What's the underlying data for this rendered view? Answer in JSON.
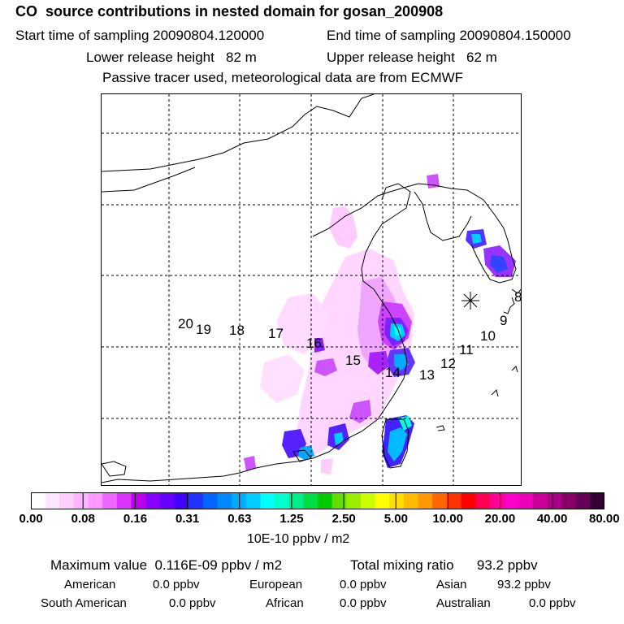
{
  "header": {
    "title": "CO  source contributions in nested domain for gosan_200908",
    "start_time": "Start time of sampling 20090804.120000",
    "end_time": "End time of sampling 20090804.150000",
    "lower_height": "Lower release height   82 m",
    "upper_height": "Upper release height   62 m",
    "tracer_note": "Passive tracer used, meteorological data are from ECMWF"
  },
  "map": {
    "trajectory_labels": [
      "8",
      "9",
      "10",
      "11",
      "12",
      "13",
      "14",
      "15",
      "16",
      "17",
      "18",
      "19",
      "20"
    ],
    "receptor_marker": "receptor-star-icon"
  },
  "colorbar": {
    "colors": [
      "#ffffff",
      "#ffe8ff",
      "#ffcfff",
      "#ffb4ff",
      "#ff99ff",
      "#ee66ff",
      "#dd33ff",
      "#bb00ee",
      "#8800ff",
      "#6600ff",
      "#4400ff",
      "#2233ff",
      "#0066ff",
      "#0088ff",
      "#00aaff",
      "#00ccff",
      "#00ffff",
      "#00ffcc",
      "#00ee88",
      "#00dd44",
      "#00cc00",
      "#66dd00",
      "#99ee00",
      "#ccff00",
      "#ffff00",
      "#ffdd00",
      "#ffbb00",
      "#ff9900",
      "#ff6600",
      "#ff3300",
      "#ff0000",
      "#ff0055",
      "#ff0099",
      "#ff00cc",
      "#ee00bb",
      "#cc0099",
      "#aa0088",
      "#880066",
      "#660055",
      "#330033"
    ],
    "tick_labels": [
      "0.00",
      "0.08",
      "0.16",
      "0.31",
      "0.63",
      "1.25",
      "2.50",
      "5.00",
      "10.00",
      "20.00",
      "40.00",
      "80.00"
    ],
    "units": "10E-10 ppbv / m2"
  },
  "summary": {
    "max_value": "Maximum value  0.116E-09 ppbv / m2",
    "total_mixing": "Total mixing ratio      93.2 ppbv",
    "sources": [
      {
        "name": "American",
        "value": "0.0 ppbv"
      },
      {
        "name": "European",
        "value": "0.0 ppbv"
      },
      {
        "name": "Asian",
        "value": "93.2 ppbv"
      },
      {
        "name": "South American",
        "value": "0.0 ppbv"
      },
      {
        "name": "African",
        "value": "0.0 ppbv"
      },
      {
        "name": "Australian",
        "value": "0.0 ppbv"
      }
    ]
  }
}
